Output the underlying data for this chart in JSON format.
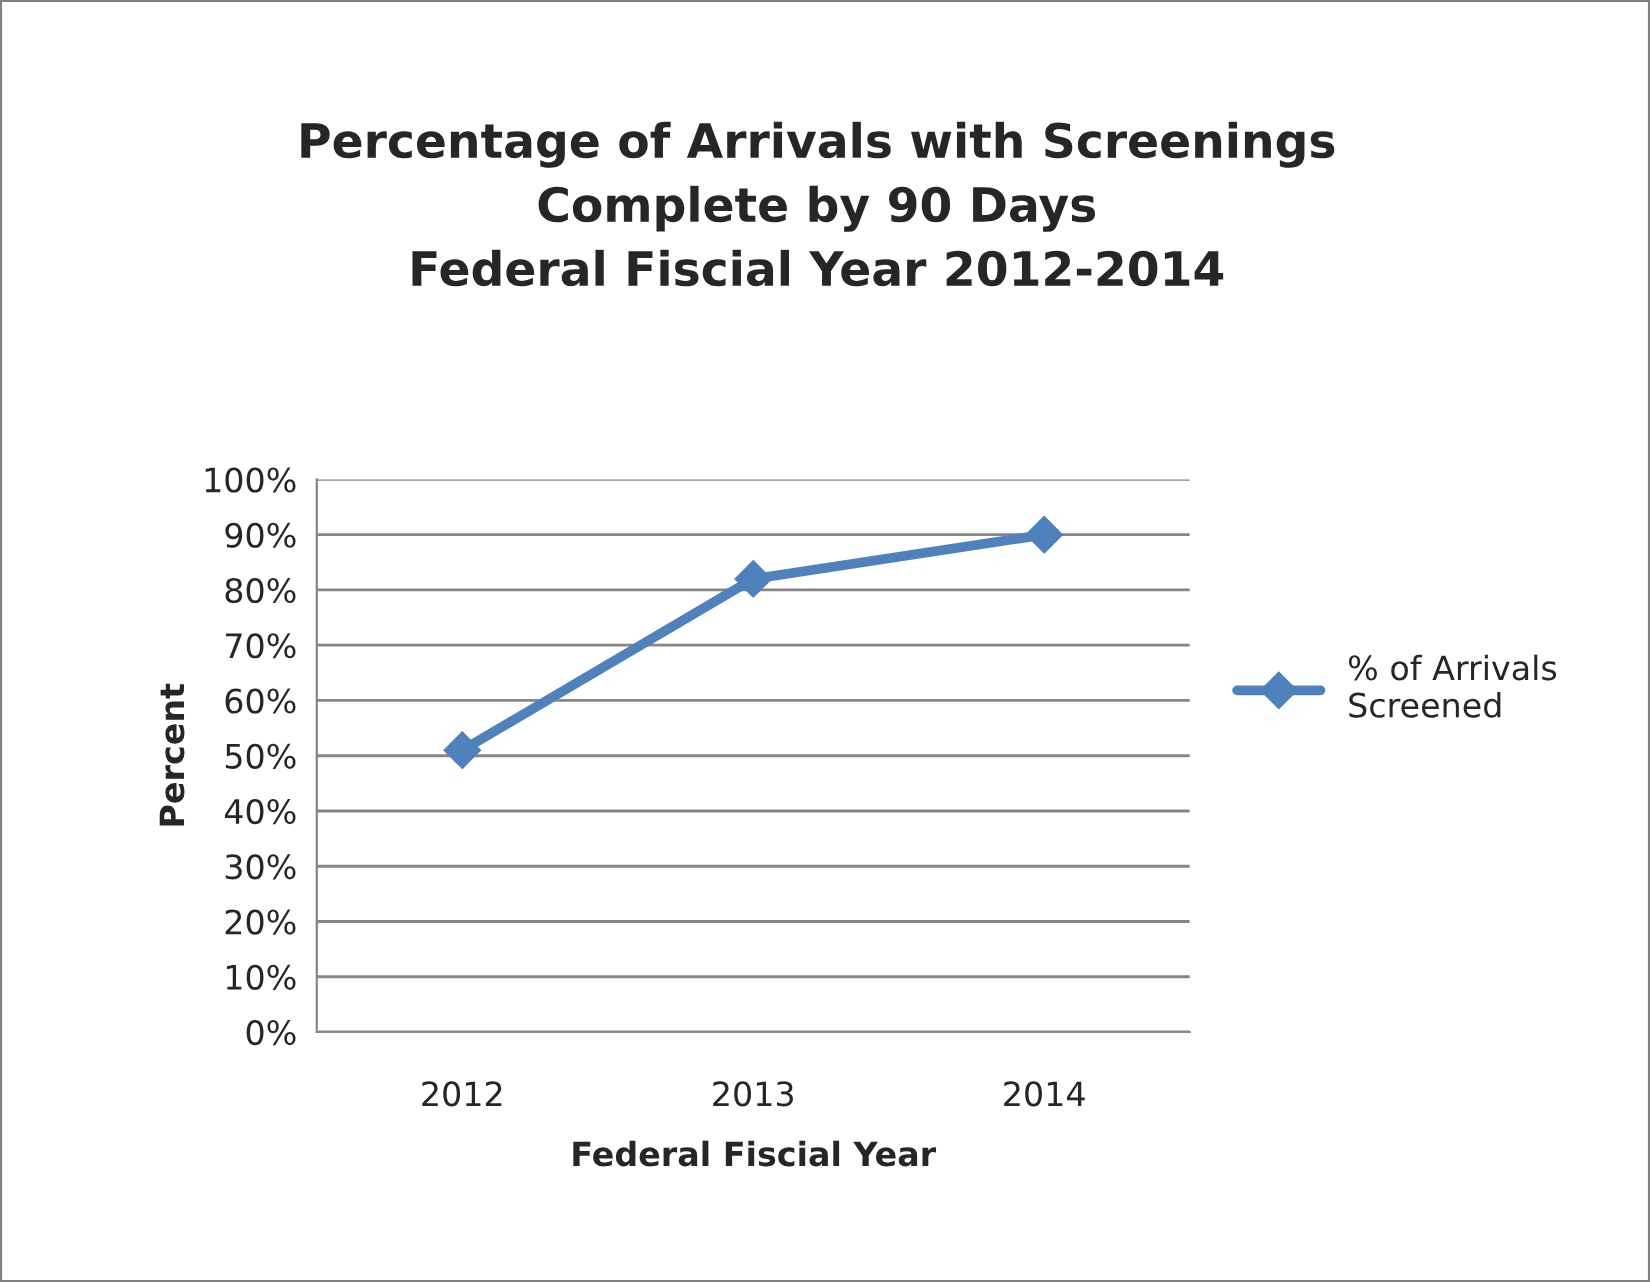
{
  "chart_data": {
    "type": "line",
    "title": "Percentage of Arrivals with Screenings\nComplete by 90 Days\nFederal Fiscial Year 2012-2014",
    "xlabel": "Federal Fiscial Year",
    "ylabel": "Percent",
    "categories": [
      "2012",
      "2013",
      "2014"
    ],
    "series": [
      {
        "name": "% of Arrivals Screened",
        "color": "#4f81bd",
        "values": [
          51,
          82,
          90
        ]
      }
    ],
    "ylim": [
      0,
      100
    ],
    "yticks": [
      {
        "value": 0,
        "label": "0%"
      },
      {
        "value": 10,
        "label": "10%"
      },
      {
        "value": 20,
        "label": "20%"
      },
      {
        "value": 30,
        "label": "30%"
      },
      {
        "value": 40,
        "label": "40%"
      },
      {
        "value": 50,
        "label": "50%"
      },
      {
        "value": 60,
        "label": "60%"
      },
      {
        "value": 70,
        "label": "70%"
      },
      {
        "value": 80,
        "label": "80%"
      },
      {
        "value": 90,
        "label": "90%"
      },
      {
        "value": 100,
        "label": "100%"
      }
    ],
    "grid": "y",
    "legend": "right",
    "marker": "diamond",
    "line_style": "solid"
  }
}
